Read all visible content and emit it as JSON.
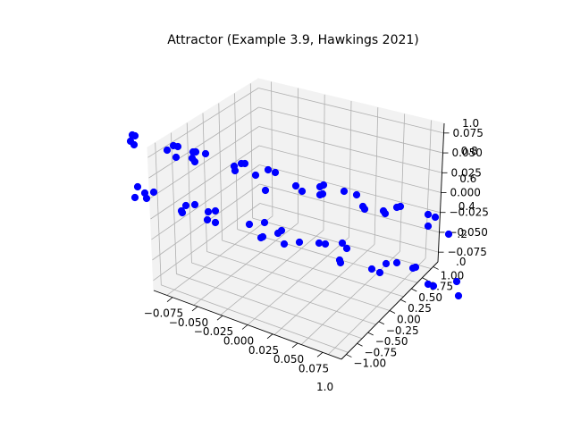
{
  "chart_data": {
    "type": "scatter",
    "title": "Attractor (Example 3.9, Hawkings 2021)",
    "marker_color": "#0000ff",
    "pane_color": "#f2f2f2",
    "grid_color": "#b0b0b0",
    "grid": true,
    "xlabel": "",
    "ylabel": "",
    "zlabel": "",
    "x_ticks": [
      "−0.075",
      "−0.050",
      "−0.025",
      "0.000",
      "0.025",
      "0.050",
      "0.075"
    ],
    "x_offset_label": "1.0",
    "y_ticks": [
      "−1.00",
      "−0.75",
      "−0.50",
      "−0.25",
      "0.00",
      "0.25",
      "0.50",
      "0.75",
      "1.00"
    ],
    "z_ticks": [
      "−0.075",
      "−0.050",
      "−0.025",
      "0.000",
      "0.025",
      "0.050",
      "0.075"
    ],
    "z_ticks_underlay": [
      ".0",
      ".2",
      "0.4",
      "0.6",
      "0.8",
      "1.0"
    ],
    "points": [
      [
        148,
        151
      ],
      [
        151,
        152
      ],
      [
        146,
        158
      ],
      [
        150,
        162
      ],
      [
        187,
        168
      ],
      [
        194,
        163
      ],
      [
        199,
        164
      ],
      [
        216,
        170
      ],
      [
        219,
        170
      ],
      [
        230,
        172
      ],
      [
        197,
        176
      ],
      [
        215,
        177
      ],
      [
        218,
        181
      ],
      [
        154,
        209
      ],
      [
        162,
        216
      ],
      [
        172,
        215
      ],
      [
        151,
        221
      ],
      [
        164,
        222
      ],
      [
        262,
        186
      ],
      [
        270,
        183
      ],
      [
        274,
        183
      ],
      [
        263,
        191
      ],
      [
        286,
        196
      ],
      [
        300,
        190
      ],
      [
        308,
        193
      ],
      [
        297,
        213
      ],
      [
        331,
        208
      ],
      [
        338,
        214
      ],
      [
        358,
        209
      ],
      [
        362,
        207
      ],
      [
        358,
        218
      ],
      [
        361,
        217
      ],
      [
        385,
        214
      ],
      [
        399,
        218
      ],
      [
        208,
        230
      ],
      [
        218,
        229
      ],
      [
        204,
        238
      ],
      [
        203,
        236
      ],
      [
        233,
        237
      ],
      [
        241,
        236
      ],
      [
        232,
        246
      ],
      [
        241,
        249
      ],
      [
        279,
        251
      ],
      [
        296,
        249
      ],
      [
        294,
        265
      ],
      [
        292,
        266
      ],
      [
        311,
        261
      ],
      [
        315,
        258
      ],
      [
        318,
        273
      ],
      [
        335,
        271
      ],
      [
        357,
        272
      ],
      [
        364,
        273
      ],
      [
        383,
        272
      ],
      [
        388,
        278
      ],
      [
        380,
        291
      ],
      [
        381,
        294
      ],
      [
        406,
        231
      ],
      [
        408,
        234
      ],
      [
        429,
        236
      ],
      [
        431,
        239
      ],
      [
        444,
        232
      ],
      [
        448,
        231
      ],
      [
        479,
        240
      ],
      [
        487,
        243
      ],
      [
        479,
        253
      ],
      [
        416,
        301
      ],
      [
        425,
        305
      ],
      [
        432,
        295
      ],
      [
        444,
        294
      ],
      [
        462,
        300
      ],
      [
        465,
        299
      ],
      [
        479,
        318
      ],
      [
        485,
        320
      ],
      [
        511,
        315
      ],
      [
        513,
        331
      ],
      [
        502,
        262
      ]
    ]
  }
}
